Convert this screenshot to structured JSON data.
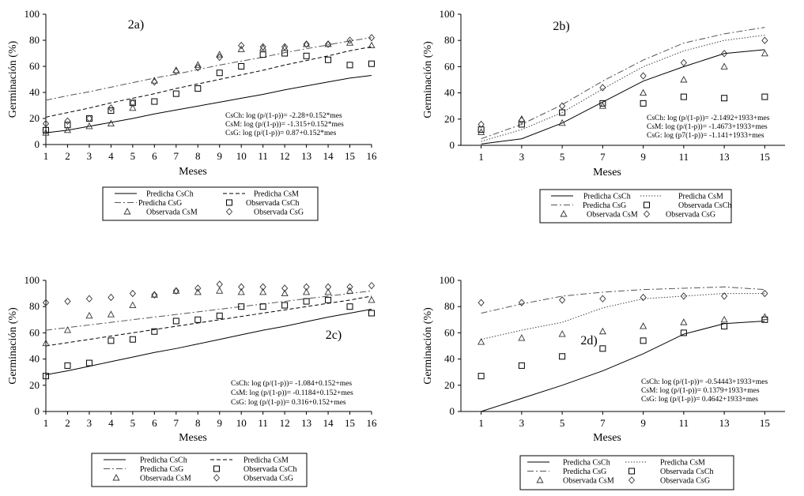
{
  "chart_data": [
    {
      "type": "line",
      "title": "2a)",
      "xlabel": "Meses",
      "ylabel": "Germinación (%)",
      "xlim": [
        1,
        16
      ],
      "ylim": [
        0,
        100
      ],
      "x_ticks": [
        1,
        2,
        3,
        4,
        5,
        6,
        7,
        8,
        9,
        10,
        11,
        12,
        13,
        14,
        15,
        16
      ],
      "y_ticks": [
        0,
        20,
        40,
        60,
        80,
        100
      ],
      "series": [
        {
          "name": "Predicha CsCh",
          "kind": "line",
          "style": "solid",
          "x": [
            1,
            2,
            3,
            4,
            5,
            6,
            7,
            8,
            9,
            10,
            11,
            12,
            13,
            14,
            15,
            16
          ],
          "values": [
            9,
            11,
            14,
            17,
            20,
            23.5,
            26.5,
            29.5,
            32.5,
            35.5,
            38.5,
            42,
            45,
            48,
            51,
            53
          ]
        },
        {
          "name": "Predicha CsM",
          "kind": "line",
          "style": "dashed",
          "x": [
            1,
            2,
            3,
            4,
            5,
            6,
            7,
            8,
            9,
            10,
            11,
            12,
            13,
            14,
            15,
            16
          ],
          "values": [
            21,
            24.5,
            28,
            32,
            35.5,
            39,
            43,
            46.5,
            50,
            53.5,
            57,
            61,
            64.5,
            68,
            72,
            75
          ]
        },
        {
          "name": "Predicha CsG",
          "kind": "line",
          "style": "dashdot",
          "x": [
            1,
            2,
            3,
            4,
            5,
            6,
            7,
            8,
            9,
            10,
            11,
            12,
            13,
            14,
            15,
            16
          ],
          "values": [
            34,
            37.5,
            40.5,
            44,
            47.5,
            51,
            54,
            57.5,
            61,
            64,
            67,
            70.5,
            73.5,
            76.5,
            79.5,
            82
          ]
        },
        {
          "name": "Observada CsCh",
          "kind": "marker",
          "marker": "square",
          "x": [
            1,
            2,
            3,
            4,
            5,
            6,
            7,
            8,
            9,
            10,
            11,
            12,
            13,
            14,
            15,
            16
          ],
          "values": [
            11,
            15,
            20,
            26,
            32,
            33,
            39,
            43,
            55,
            60,
            69,
            70,
            68,
            65,
            61,
            62
          ]
        },
        {
          "name": "Observada CsM",
          "kind": "marker",
          "marker": "triangle",
          "x": [
            1,
            2,
            3,
            4,
            5,
            6,
            7,
            8,
            9,
            10,
            11,
            12,
            13,
            14,
            15,
            16
          ],
          "values": [
            9,
            11,
            14,
            16,
            28,
            49,
            57,
            61,
            69,
            73,
            74,
            74,
            77,
            77,
            78,
            76
          ]
        },
        {
          "name": "Observada CsG",
          "kind": "marker",
          "marker": "diamond",
          "x": [
            1,
            2,
            3,
            4,
            5,
            6,
            7,
            8,
            9,
            10,
            11,
            12,
            13,
            14,
            15,
            16
          ],
          "values": [
            16,
            18,
            20,
            28,
            32,
            48,
            56,
            59,
            67,
            76,
            75,
            75,
            77,
            77,
            80,
            82
          ]
        }
      ],
      "equations": [
        "CsCh: log (p/(1-p))= -2.28+0.152*mes",
        "CsM: log (p/(1-p))= -1.315+0.152*mes",
        "CsG: log (p/(1-p))= 0.87+0.152*mes"
      ],
      "legend": [
        "Predicha CsCh",
        "Predicha CsM",
        "Predicha CsG",
        "Observada CsCh",
        "Observada CsM",
        "Observada CsG"
      ]
    },
    {
      "type": "line",
      "title": "2b)",
      "xlabel": "Meses",
      "ylabel": "Germinación (%)",
      "xlim": [
        0,
        16
      ],
      "ylim": [
        0,
        100
      ],
      "x_ticks": [
        1,
        3,
        5,
        7,
        9,
        11,
        13,
        15
      ],
      "y_ticks": [
        0,
        20,
        40,
        60,
        80,
        100
      ],
      "series": [
        {
          "name": "Predicha CsCh",
          "kind": "line",
          "style": "solid",
          "x": [
            1,
            3,
            5,
            7,
            9,
            11,
            13,
            15
          ],
          "values": [
            1,
            5,
            17,
            33,
            49,
            60,
            70,
            73
          ]
        },
        {
          "name": "Predicha CsM",
          "kind": "line",
          "style": "dotted",
          "x": [
            1,
            3,
            5,
            7,
            9,
            11,
            13,
            15
          ],
          "values": [
            3,
            12,
            25,
            43,
            60,
            72,
            80,
            84
          ]
        },
        {
          "name": "Predicha CsG",
          "kind": "line",
          "style": "dashdot",
          "x": [
            1,
            3,
            5,
            7,
            9,
            11,
            13,
            15
          ],
          "values": [
            5,
            16,
            31,
            49,
            65,
            78,
            85,
            90
          ]
        },
        {
          "name": "Observada CsCh",
          "kind": "marker",
          "marker": "square",
          "x": [
            1,
            3,
            5,
            7,
            9,
            11,
            13,
            15
          ],
          "values": [
            12,
            16,
            25,
            32,
            32,
            37,
            36,
            37
          ]
        },
        {
          "name": "Observada CsM",
          "kind": "marker",
          "marker": "triangle",
          "x": [
            1,
            3,
            5,
            7,
            9,
            11,
            13,
            15
          ],
          "values": [
            10,
            20,
            17,
            30,
            40,
            50,
            60,
            70
          ]
        },
        {
          "name": "Observada CsG",
          "kind": "marker",
          "marker": "diamond",
          "x": [
            1,
            3,
            5,
            7,
            9,
            11,
            13,
            15
          ],
          "values": [
            16,
            19,
            30,
            44,
            53,
            63,
            70,
            80
          ]
        }
      ],
      "equations": [
        "CsCh: log (p/(1-p))= -2.1492+1933+mes",
        "CsM: log (p/(1-p))= -1.4673+1933+mes",
        "CsG: log (p7(1-p))= -1.141+1933+mes"
      ],
      "legend": [
        "Predicha CsCh",
        "Predicha CsM",
        "Predicha CsG",
        "Observada CsCh",
        "Observada CsM",
        "Observada CsG"
      ]
    },
    {
      "type": "line",
      "title": "2c)",
      "xlabel": "Meses",
      "ylabel": "Germinación (%)",
      "xlim": [
        1,
        16
      ],
      "ylim": [
        0,
        100
      ],
      "x_ticks": [
        1,
        2,
        3,
        4,
        5,
        6,
        7,
        8,
        9,
        10,
        11,
        12,
        13,
        14,
        15,
        16
      ],
      "y_ticks": [
        0,
        20,
        40,
        60,
        80,
        100
      ],
      "series": [
        {
          "name": "Predicha CsCh",
          "kind": "line",
          "style": "solid",
          "x": [
            1,
            2,
            3,
            4,
            5,
            6,
            7,
            8,
            9,
            10,
            11,
            12,
            13,
            14,
            15,
            16
          ],
          "values": [
            28,
            31,
            34.5,
            38,
            41.5,
            45,
            48,
            51.5,
            55,
            58.5,
            62,
            65,
            68.5,
            72,
            75,
            78
          ]
        },
        {
          "name": "Predicha CsM",
          "kind": "line",
          "style": "dashed",
          "x": [
            1,
            2,
            3,
            4,
            5,
            6,
            7,
            8,
            9,
            10,
            11,
            12,
            13,
            14,
            15,
            16
          ],
          "values": [
            50,
            52.5,
            55,
            57.5,
            60,
            62.5,
            65,
            67.5,
            70,
            72.5,
            75,
            77.5,
            80,
            82.5,
            85,
            88
          ]
        },
        {
          "name": "Predicha CsG",
          "kind": "line",
          "style": "dashdot",
          "x": [
            1,
            2,
            3,
            4,
            5,
            6,
            7,
            8,
            9,
            10,
            11,
            12,
            13,
            14,
            15,
            16
          ],
          "values": [
            62,
            64,
            66,
            68,
            70,
            72,
            74,
            76,
            78,
            80,
            82,
            84,
            86,
            88,
            90,
            92
          ]
        },
        {
          "name": "Observada CsCh",
          "kind": "marker",
          "marker": "square",
          "x": [
            1,
            2,
            3,
            4,
            5,
            6,
            7,
            8,
            9,
            10,
            11,
            12,
            13,
            14,
            15,
            16
          ],
          "values": [
            27,
            35,
            37,
            54,
            55,
            61,
            69,
            70,
            73,
            80,
            80,
            81,
            84,
            85,
            80,
            75
          ]
        },
        {
          "name": "Observada CsM",
          "kind": "marker",
          "marker": "triangle",
          "x": [
            1,
            2,
            3,
            4,
            5,
            6,
            7,
            8,
            9,
            10,
            11,
            12,
            13,
            14,
            15,
            16
          ],
          "values": [
            52,
            62,
            73,
            74,
            81,
            89,
            92,
            91,
            92,
            91,
            91,
            90,
            91,
            91,
            92,
            85
          ]
        },
        {
          "name": "Observada CsG",
          "kind": "marker",
          "marker": "diamond",
          "x": [
            1,
            2,
            3,
            4,
            5,
            6,
            7,
            8,
            9,
            10,
            11,
            12,
            13,
            14,
            15,
            16
          ],
          "values": [
            83,
            84,
            86,
            87,
            90,
            89,
            92,
            94,
            97,
            95,
            95,
            94,
            95,
            95,
            95,
            96
          ]
        }
      ],
      "equations": [
        "CsCh: log (p/(1-p))= -1.084+0.152+mes",
        "CsM: log (p/(1-p))= -0.1184+0.152+mes",
        "CsG: log (p/(1-p))= 0.316+0.152+mes"
      ],
      "legend": [
        "Predicha CsCh",
        "Predicha CsM",
        "Predicha CsG",
        "Observada CsCh",
        "Observada CsM",
        "Observada CsG"
      ]
    },
    {
      "type": "line",
      "title": "2d)",
      "xlabel": "Meses",
      "ylabel": "Germinación (%)",
      "xlim": [
        0,
        16
      ],
      "ylim": [
        0,
        100
      ],
      "x_ticks": [
        1,
        3,
        5,
        7,
        9,
        11,
        13,
        15
      ],
      "y_ticks": [
        0,
        20,
        40,
        60,
        80,
        100
      ],
      "series": [
        {
          "name": "Predicha CsCh",
          "kind": "line",
          "style": "solid",
          "x": [
            1,
            3,
            5,
            7,
            9,
            11,
            13,
            15
          ],
          "values": [
            0,
            10,
            20,
            31,
            44,
            59,
            67,
            69
          ]
        },
        {
          "name": "Predicha CsM",
          "kind": "line",
          "style": "dotted",
          "x": [
            1,
            3,
            5,
            7,
            9,
            11,
            13,
            15
          ],
          "values": [
            55,
            62,
            68,
            79,
            86,
            88,
            90,
            90
          ]
        },
        {
          "name": "Predicha CsG",
          "kind": "line",
          "style": "dashdot",
          "x": [
            1,
            3,
            5,
            7,
            9,
            11,
            13,
            15
          ],
          "values": [
            75,
            82,
            88,
            91,
            93,
            94,
            95,
            93
          ]
        },
        {
          "name": "Observada CsCh",
          "kind": "marker",
          "marker": "square",
          "x": [
            1,
            3,
            5,
            7,
            9,
            11,
            13,
            15
          ],
          "values": [
            27,
            35,
            42,
            48,
            54,
            60,
            65,
            70
          ]
        },
        {
          "name": "Observada CsM",
          "kind": "marker",
          "marker": "triangle",
          "x": [
            1,
            3,
            5,
            7,
            9,
            11,
            13,
            15
          ],
          "values": [
            53,
            56,
            59,
            61,
            65,
            68,
            70,
            72
          ]
        },
        {
          "name": "Observada CsG",
          "kind": "marker",
          "marker": "diamond",
          "x": [
            1,
            3,
            5,
            7,
            9,
            11,
            13,
            15
          ],
          "values": [
            83,
            83,
            85,
            86,
            87,
            88,
            88,
            90
          ]
        }
      ],
      "equations": [
        "CsCh: log (p/(1-p))= -0.54443+1933+mes",
        "CsM: log (p/(1-p))= 0.1379+1933+mes",
        "CsG: log (p/(1-p))= 0.4642+1933+mes"
      ],
      "legend": [
        "Predicha CsCh",
        "Predicha CsM",
        "Predicha CsG",
        "Observada CsCh",
        "Observada CsM",
        "Observada CsG"
      ]
    }
  ]
}
